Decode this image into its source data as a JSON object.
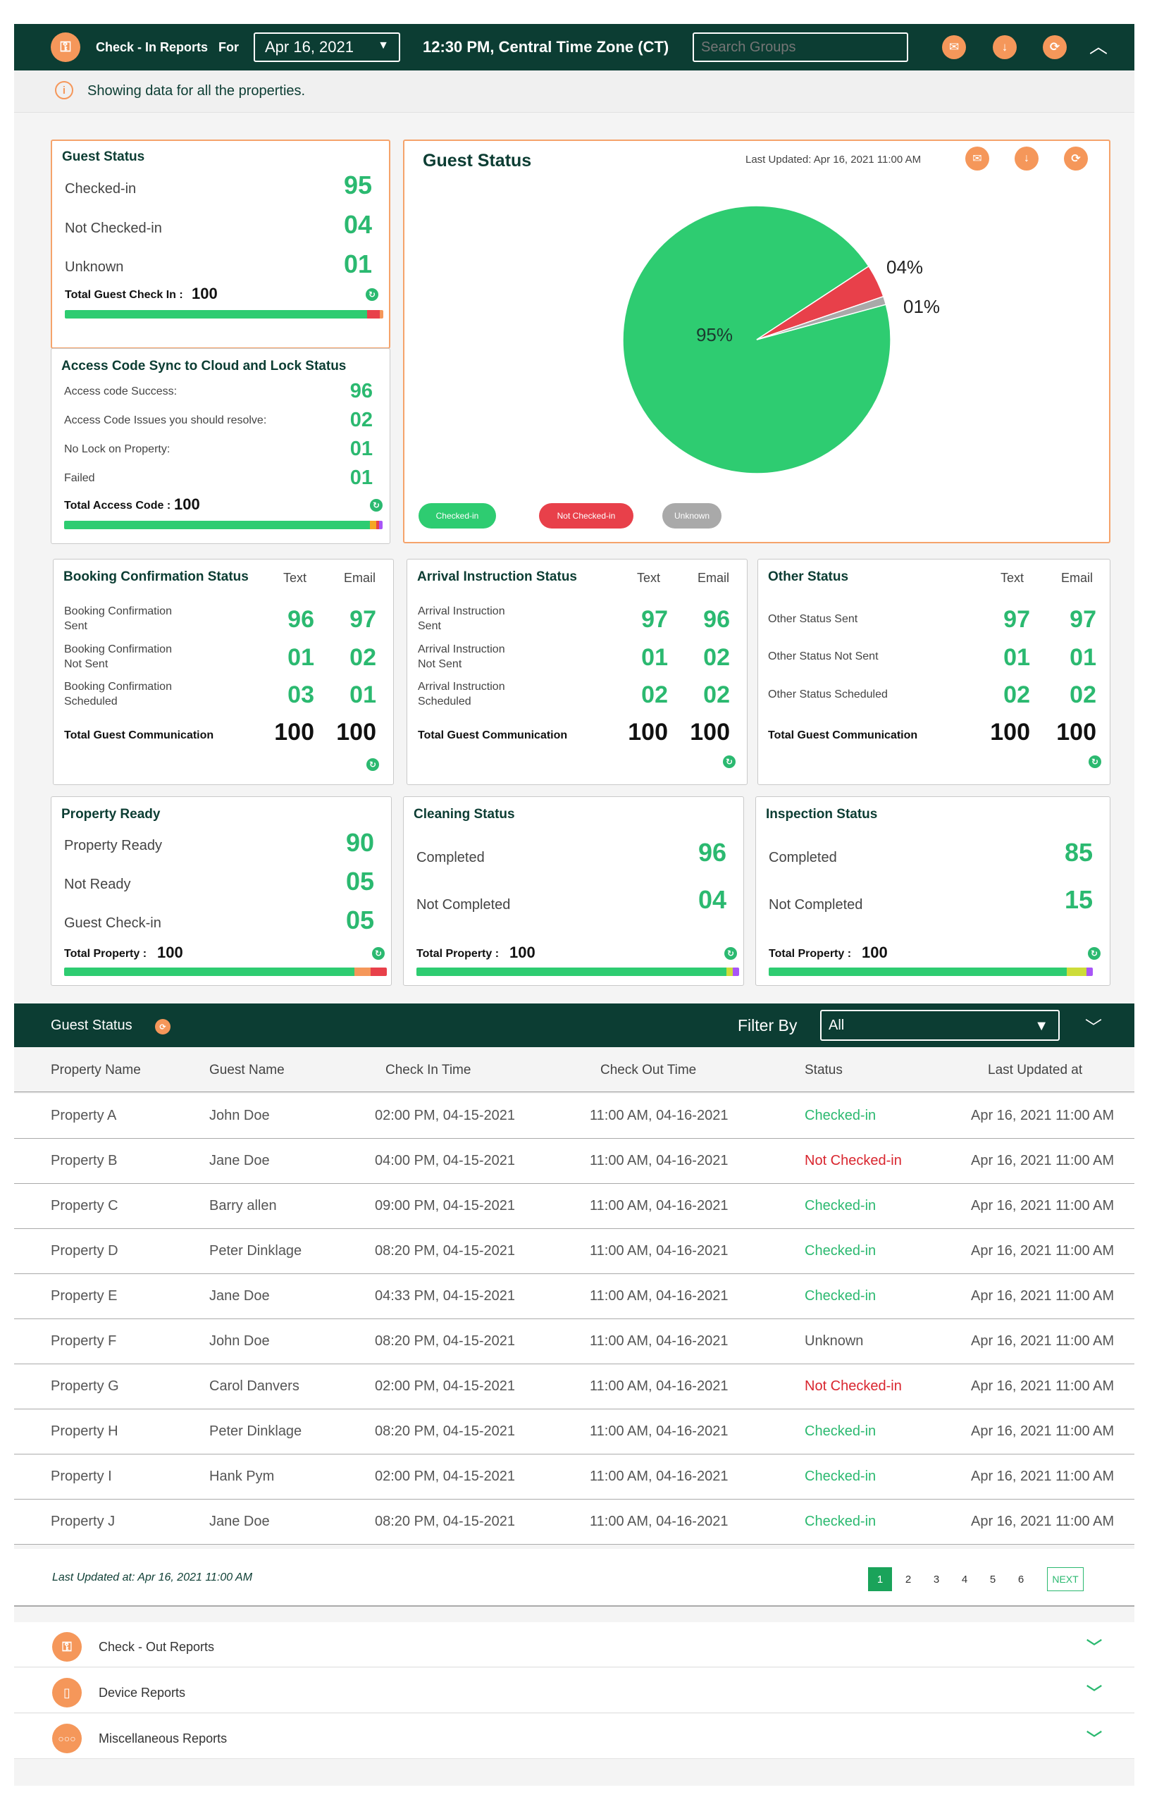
{
  "header": {
    "title": "Check - In Reports",
    "for_label": "For",
    "date": "Apr 16, 2021",
    "time": "12:30 PM, Central Time Zone (CT)",
    "search_placeholder": "Search Groups"
  },
  "info": {
    "text": "Showing data for all the properties."
  },
  "guest_status": {
    "title": "Guest Status",
    "rows": [
      {
        "label": "Checked-in",
        "value": "95"
      },
      {
        "label": "Not Checked-in",
        "value": "04"
      },
      {
        "label": "Unknown",
        "value": "01"
      }
    ],
    "total_label": "Total Guest Check In :",
    "total_value": "100"
  },
  "access": {
    "title": "Access Code Sync to Cloud and Lock Status",
    "rows": [
      {
        "label": "Access code Success:",
        "value": "96"
      },
      {
        "label": "Access Code Issues you should resolve:",
        "value": "02"
      },
      {
        "label": "No Lock on Property:",
        "value": "01"
      },
      {
        "label": "Failed",
        "value": "01"
      }
    ],
    "total_label": "Total Access Code :",
    "total_value": "100"
  },
  "pie": {
    "title": "Guest Status",
    "last_updated": "Last Updated: Apr 16, 2021 11:00 AM",
    "legend": [
      "Checked-in",
      "Not Checked-in",
      "Unknown"
    ]
  },
  "chart_data": {
    "type": "pie",
    "title": "Guest Status",
    "labels": [
      "Checked-in",
      "Not Checked-in",
      "Unknown"
    ],
    "values": [
      95,
      4,
      1
    ],
    "data_labels": [
      "95%",
      "04%",
      "01%"
    ],
    "colors": [
      "#2ecc71",
      "#e8404a",
      "#a9a9a9"
    ],
    "legend_position": "bottom-left"
  },
  "comm": [
    {
      "title": "Booking Confirmation Status",
      "text_h": "Text",
      "email_h": "Email",
      "rows": [
        {
          "l1": "Booking Confirmation",
          "l2": "Sent",
          "t": "96",
          "e": "97"
        },
        {
          "l1": "Booking Confirmation",
          "l2": "Not Sent",
          "t": "01",
          "e": "02"
        },
        {
          "l1": "Booking Confirmation",
          "l2": "Scheduled",
          "t": "03",
          "e": "01"
        }
      ],
      "total_label": "Total Guest Communication",
      "tt": "100",
      "te": "100"
    },
    {
      "title": "Arrival Instruction Status",
      "text_h": "Text",
      "email_h": "Email",
      "rows": [
        {
          "l1": "Arrival Instruction",
          "l2": "Sent",
          "t": "97",
          "e": "96"
        },
        {
          "l1": "Arrival Instruction",
          "l2": "Not Sent",
          "t": "01",
          "e": "02"
        },
        {
          "l1": "Arrival Instruction",
          "l2": "Scheduled",
          "t": "02",
          "e": "02"
        }
      ],
      "total_label": "Total Guest Communication",
      "tt": "100",
      "te": "100"
    },
    {
      "title": "Other Status",
      "text_h": "Text",
      "email_h": "Email",
      "rows": [
        {
          "l1": "Other Status Sent",
          "l2": "",
          "t": "97",
          "e": "97"
        },
        {
          "l1": "Other Status Not Sent",
          "l2": "",
          "t": "01",
          "e": "01"
        },
        {
          "l1": "Other Status Scheduled",
          "l2": "",
          "t": "02",
          "e": "02"
        }
      ],
      "total_label": "Total Guest Communication",
      "tt": "100",
      "te": "100"
    }
  ],
  "property": {
    "title": "Property Ready",
    "rows": [
      {
        "label": "Property Ready",
        "value": "90"
      },
      {
        "label": "Not Ready",
        "value": "05"
      },
      {
        "label": "Guest Check-in",
        "value": "05"
      }
    ],
    "total_label": "Total Property :",
    "total_value": "100"
  },
  "cleaning": {
    "title": "Cleaning Status",
    "rows": [
      {
        "label": "Completed",
        "value": "96"
      },
      {
        "label": "Not Completed",
        "value": "04"
      }
    ],
    "total_label": "Total Property :",
    "total_value": "100"
  },
  "inspection": {
    "title": "Inspection Status",
    "rows": [
      {
        "label": "Completed",
        "value": "85"
      },
      {
        "label": "Not Completed",
        "value": "15"
      }
    ],
    "total_label": "Total Property :",
    "total_value": "100"
  },
  "table": {
    "title": "Guest Status",
    "filter_label": "Filter By",
    "filter_value": "All",
    "headers": [
      "Property Name",
      "Guest Name",
      "Check In Time",
      "Check Out Time",
      "Status",
      "Last Updated at"
    ],
    "rows": [
      [
        "Property A",
        "John Doe",
        "02:00 PM, 04-15-2021",
        "11:00 AM, 04-16-2021",
        "Checked-in",
        "Apr 16, 2021 11:00 AM"
      ],
      [
        "Property B",
        "Jane Doe",
        "04:00 PM, 04-15-2021",
        "11:00 AM, 04-16-2021",
        "Not Checked-in",
        "Apr 16, 2021 11:00 AM"
      ],
      [
        "Property C",
        "Barry allen",
        "09:00 PM, 04-15-2021",
        "11:00 AM, 04-16-2021",
        "Checked-in",
        "Apr 16, 2021 11:00 AM"
      ],
      [
        "Property D",
        "Peter Dinklage",
        "08:20 PM, 04-15-2021",
        "11:00 AM, 04-16-2021",
        "Checked-in",
        "Apr 16, 2021 11:00 AM"
      ],
      [
        "Property E",
        "Jane Doe",
        "04:33 PM, 04-15-2021",
        "11:00 AM, 04-16-2021",
        "Checked-in",
        "Apr 16, 2021 11:00 AM"
      ],
      [
        "Property F",
        "John Doe",
        "08:20 PM, 04-15-2021",
        "11:00 AM, 04-16-2021",
        "Unknown",
        "Apr 16, 2021 11:00 AM"
      ],
      [
        "Property G",
        "Carol Danvers",
        "02:00 PM, 04-15-2021",
        "11:00 AM, 04-16-2021",
        "Not Checked-in",
        "Apr 16, 2021 11:00 AM"
      ],
      [
        "Property H",
        "Peter Dinklage",
        "08:20 PM, 04-15-2021",
        "11:00 AM, 04-16-2021",
        "Checked-in",
        "Apr 16, 2021 11:00 AM"
      ],
      [
        "Property I",
        "Hank Pym",
        "02:00 PM, 04-15-2021",
        "11:00 AM, 04-16-2021",
        "Checked-in",
        "Apr 16, 2021 11:00 AM"
      ],
      [
        "Property J",
        "Jane Doe",
        "08:20 PM, 04-15-2021",
        "11:00 AM, 04-16-2021",
        "Checked-in",
        "Apr 16, 2021 11:00 AM"
      ]
    ],
    "last_updated": "Last Updated at: Apr 16, 2021 11:00 AM",
    "pages": [
      "1",
      "2",
      "3",
      "4",
      "5",
      "6"
    ],
    "next": "NEXT"
  },
  "status_colors": {
    "Checked-in": "#2bb970",
    "Not Checked-in": "#d9262f",
    "Unknown": "#555555"
  },
  "accordions": [
    {
      "label": "Check - Out Reports",
      "icon": "checkout-icon"
    },
    {
      "label": "Device Reports",
      "icon": "device-icon"
    },
    {
      "label": "Miscellaneous Reports",
      "icon": "more-icon"
    }
  ]
}
